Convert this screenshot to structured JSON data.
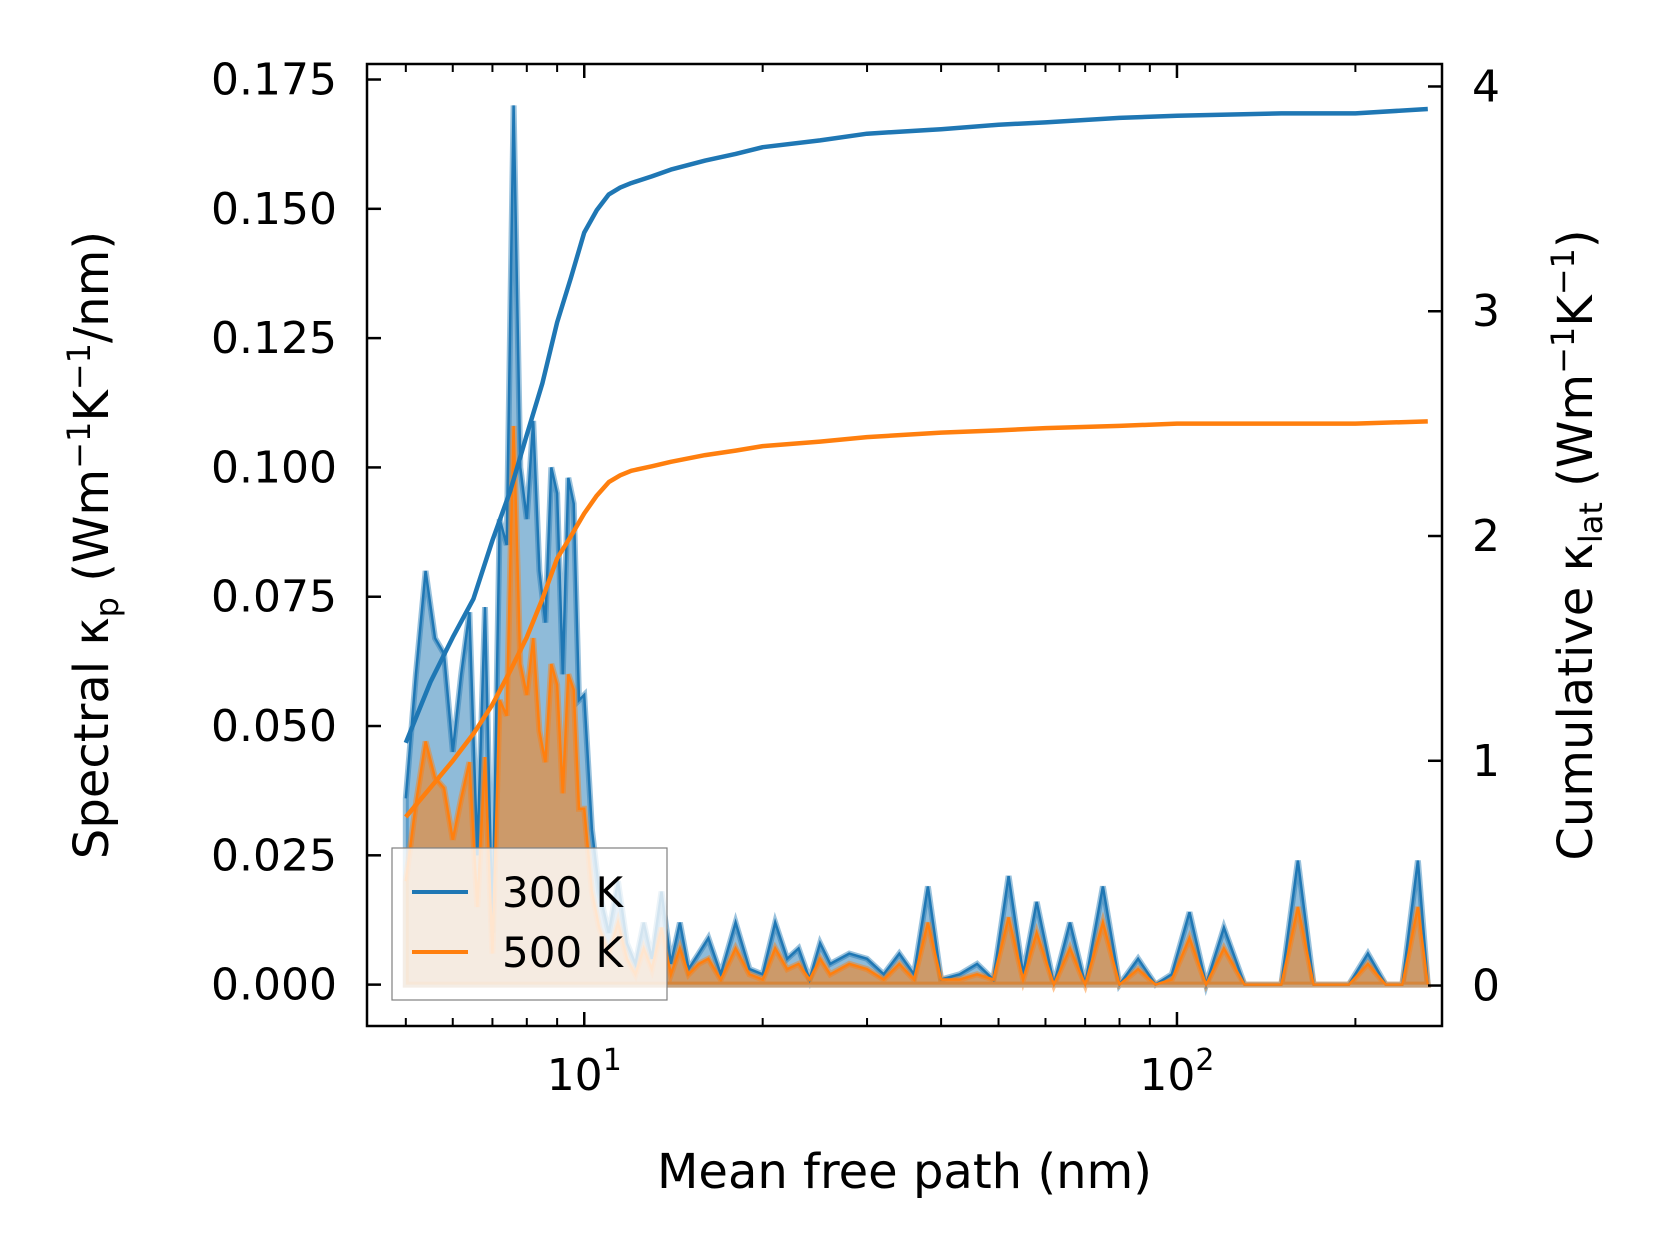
{
  "chart_data": {
    "type": "line",
    "title": "",
    "xlabel": "Mean free path (nm)",
    "ylabel": {
      "prefix": "Spectral κ",
      "sub": "p",
      "units_open": " (Wm",
      "sup1": "−1",
      "mid": "K",
      "sup2": "−1",
      "units_close": "/nm)"
    },
    "y2label": {
      "prefix": "Cumulative κ",
      "sub": "lat",
      "units_open": " (Wm",
      "sup1": "−1",
      "mid": "K",
      "sup2": "−1",
      "units_close": ")"
    },
    "xscale": "log",
    "xlim": [
      4.3,
      280
    ],
    "ylim": [
      -0.008,
      0.178
    ],
    "y2lim": [
      -0.18,
      4.1
    ],
    "xticks": [
      {
        "value": 10,
        "base": "10",
        "exp": "1"
      },
      {
        "value": 100,
        "base": "10",
        "exp": "2"
      }
    ],
    "yticks": [
      "0.000",
      "0.025",
      "0.050",
      "0.075",
      "0.100",
      "0.125",
      "0.150",
      "0.175"
    ],
    "y2ticks": [
      "0",
      "1",
      "2",
      "3",
      "4"
    ],
    "legend": {
      "location": "lower-left",
      "entries": [
        "300 K",
        "500 K"
      ]
    },
    "colors": {
      "300K": "#1f77b4",
      "500K": "#ff7f0e"
    },
    "spectral": [
      {
        "name": "300 K",
        "color": "#1f77b4",
        "x": [
          5.0,
          5.2,
          5.4,
          5.6,
          5.8,
          6.0,
          6.2,
          6.4,
          6.6,
          6.8,
          7.0,
          7.2,
          7.4,
          7.6,
          7.8,
          8.0,
          8.2,
          8.4,
          8.6,
          8.8,
          9.0,
          9.2,
          9.4,
          9.6,
          9.8,
          10.0,
          10.3,
          10.6,
          11.0,
          11.4,
          11.8,
          12.2,
          12.6,
          13.0,
          13.5,
          14.0,
          14.5,
          15.0,
          15.6,
          16.2,
          17.0,
          18.0,
          19.0,
          20.0,
          21.0,
          22.0,
          23.0,
          24.0,
          25.0,
          26.0,
          28.0,
          30.0,
          32.0,
          34.0,
          36.0,
          38.0,
          40.0,
          43.0,
          46.0,
          49.0,
          52.0,
          55.0,
          58.0,
          62.0,
          66.0,
          70.0,
          75.0,
          80.0,
          86.0,
          92.0,
          98.0,
          105.0,
          112.0,
          120.0,
          130.0,
          140.0,
          150.0,
          160.0,
          170.0,
          180.0,
          195.0,
          210.0,
          225.0,
          240.0,
          255.0,
          265.0
        ],
        "y": [
          0.036,
          0.06,
          0.08,
          0.067,
          0.064,
          0.045,
          0.06,
          0.072,
          0.025,
          0.073,
          0.01,
          0.09,
          0.085,
          0.17,
          0.1,
          0.09,
          0.109,
          0.08,
          0.07,
          0.1,
          0.095,
          0.06,
          0.098,
          0.093,
          0.055,
          0.056,
          0.03,
          0.018,
          0.01,
          0.02,
          0.008,
          0.004,
          0.012,
          0.005,
          0.018,
          0.004,
          0.012,
          0.003,
          0.006,
          0.009,
          0.002,
          0.012,
          0.003,
          0.002,
          0.012,
          0.005,
          0.007,
          0.001,
          0.008,
          0.004,
          0.006,
          0.005,
          0.002,
          0.006,
          0.002,
          0.019,
          0.001,
          0.002,
          0.004,
          0.001,
          0.021,
          0.002,
          0.016,
          0.0,
          0.012,
          0.0,
          0.019,
          0.0,
          0.005,
          0.0,
          0.002,
          0.014,
          0.0,
          0.011,
          0.0,
          0.0,
          0.0,
          0.024,
          0.0,
          0.0,
          0.0,
          0.006,
          0.0,
          0.0,
          0.024,
          0.0
        ]
      },
      {
        "name": "500 K",
        "color": "#ff7f0e",
        "x": [
          5.0,
          5.2,
          5.4,
          5.6,
          5.8,
          6.0,
          6.2,
          6.4,
          6.6,
          6.8,
          7.0,
          7.2,
          7.4,
          7.6,
          7.8,
          8.0,
          8.2,
          8.4,
          8.6,
          8.8,
          9.0,
          9.2,
          9.4,
          9.6,
          9.8,
          10.0,
          10.3,
          10.6,
          11.0,
          11.4,
          11.8,
          12.2,
          12.6,
          13.0,
          13.5,
          14.0,
          14.5,
          15.0,
          15.6,
          16.2,
          17.0,
          18.0,
          19.0,
          20.0,
          21.0,
          22.0,
          23.0,
          24.0,
          25.0,
          26.0,
          28.0,
          30.0,
          32.0,
          34.0,
          36.0,
          38.0,
          40.0,
          43.0,
          46.0,
          49.0,
          52.0,
          55.0,
          58.0,
          62.0,
          66.0,
          70.0,
          75.0,
          80.0,
          86.0,
          92.0,
          98.0,
          105.0,
          112.0,
          120.0,
          130.0,
          140.0,
          150.0,
          160.0,
          170.0,
          180.0,
          195.0,
          210.0,
          225.0,
          240.0,
          255.0,
          265.0
        ],
        "y": [
          0.02,
          0.035,
          0.047,
          0.04,
          0.038,
          0.028,
          0.036,
          0.043,
          0.015,
          0.044,
          0.006,
          0.055,
          0.052,
          0.108,
          0.062,
          0.056,
          0.067,
          0.049,
          0.043,
          0.062,
          0.058,
          0.037,
          0.06,
          0.057,
          0.034,
          0.034,
          0.018,
          0.011,
          0.006,
          0.012,
          0.005,
          0.002,
          0.007,
          0.003,
          0.011,
          0.002,
          0.007,
          0.002,
          0.004,
          0.005,
          0.001,
          0.007,
          0.002,
          0.001,
          0.007,
          0.003,
          0.004,
          0.001,
          0.005,
          0.002,
          0.004,
          0.003,
          0.001,
          0.004,
          0.001,
          0.012,
          0.001,
          0.001,
          0.002,
          0.001,
          0.013,
          0.001,
          0.01,
          0.0,
          0.007,
          0.0,
          0.012,
          0.0,
          0.003,
          0.0,
          0.001,
          0.009,
          0.0,
          0.007,
          0.0,
          0.0,
          0.0,
          0.015,
          0.0,
          0.0,
          0.0,
          0.004,
          0.0,
          0.0,
          0.015,
          0.0
        ]
      }
    ],
    "cumulative": [
      {
        "name": "300 K",
        "color": "#1f77b4",
        "x": [
          5.0,
          5.5,
          6.0,
          6.5,
          7.0,
          7.5,
          8.0,
          8.5,
          9.0,
          9.5,
          10.0,
          10.5,
          11.0,
          11.5,
          12.0,
          13.0,
          14.0,
          16.0,
          18.0,
          20.0,
          25.0,
          30.0,
          40.0,
          50.0,
          60.0,
          80.0,
          100.0,
          150.0,
          200.0,
          265.0
        ],
        "y": [
          1.08,
          1.35,
          1.55,
          1.72,
          1.98,
          2.2,
          2.45,
          2.68,
          2.95,
          3.15,
          3.35,
          3.45,
          3.52,
          3.55,
          3.57,
          3.6,
          3.63,
          3.67,
          3.7,
          3.73,
          3.76,
          3.79,
          3.81,
          3.83,
          3.84,
          3.86,
          3.87,
          3.88,
          3.88,
          3.9
        ]
      },
      {
        "name": "500 K",
        "color": "#ff7f0e",
        "x": [
          5.0,
          5.5,
          6.0,
          6.5,
          7.0,
          7.5,
          8.0,
          8.5,
          9.0,
          9.5,
          10.0,
          10.5,
          11.0,
          11.5,
          12.0,
          13.0,
          14.0,
          16.0,
          18.0,
          20.0,
          25.0,
          30.0,
          40.0,
          50.0,
          60.0,
          80.0,
          100.0,
          150.0,
          200.0,
          265.0
        ],
        "y": [
          0.75,
          0.88,
          1.0,
          1.12,
          1.25,
          1.4,
          1.55,
          1.72,
          1.9,
          2.0,
          2.1,
          2.18,
          2.24,
          2.27,
          2.29,
          2.31,
          2.33,
          2.36,
          2.38,
          2.4,
          2.42,
          2.44,
          2.46,
          2.47,
          2.48,
          2.49,
          2.5,
          2.5,
          2.5,
          2.51
        ]
      }
    ]
  }
}
